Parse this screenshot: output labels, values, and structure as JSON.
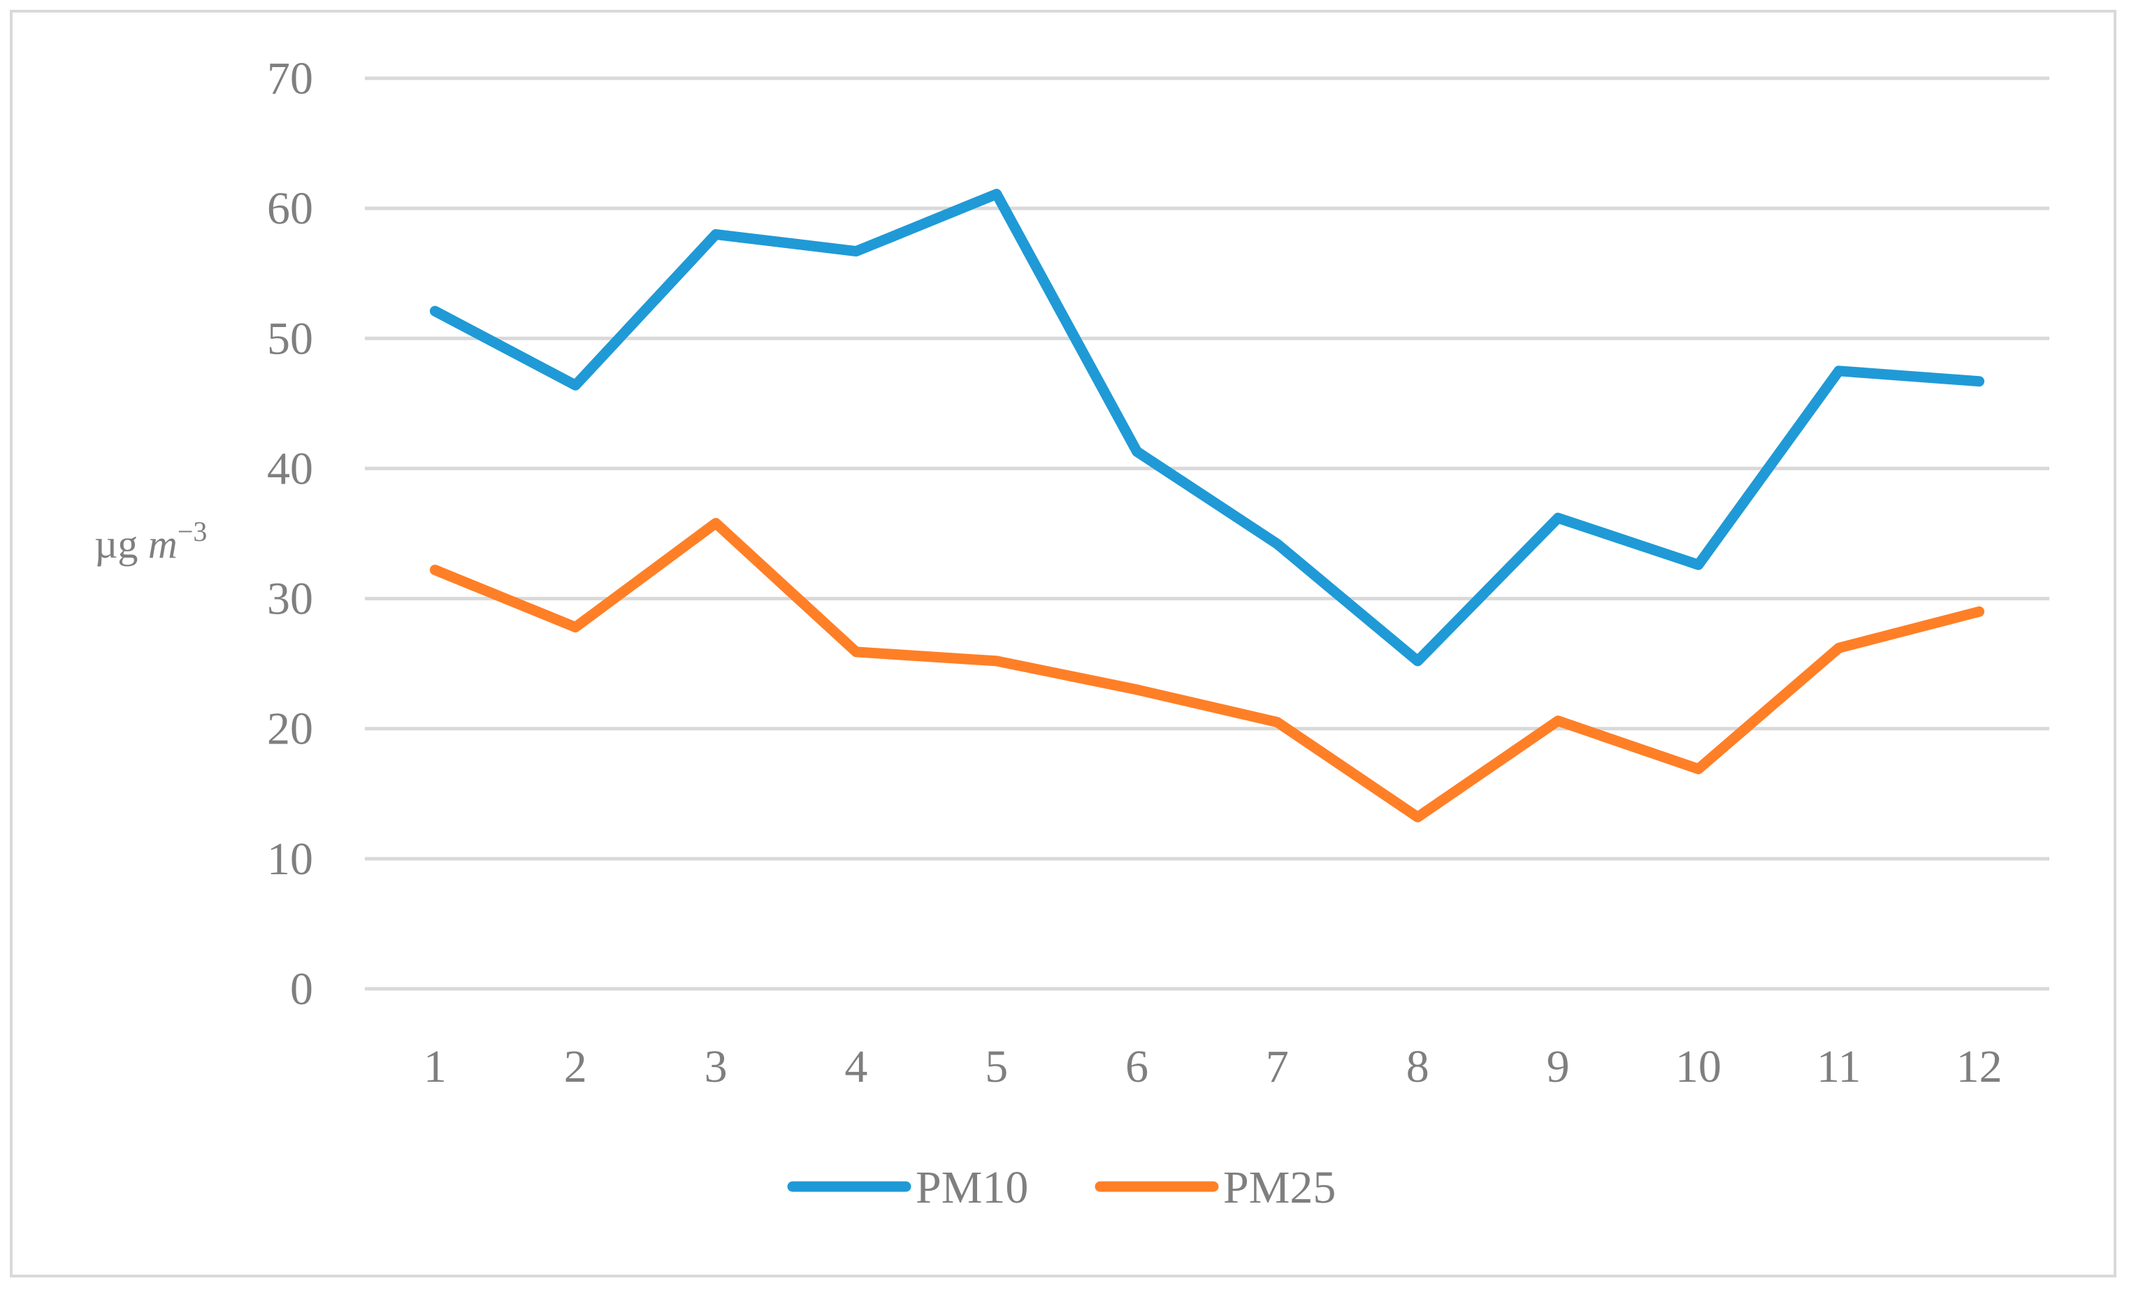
{
  "chart_data": {
    "type": "line",
    "categories": [
      "1",
      "2",
      "3",
      "4",
      "5",
      "6",
      "7",
      "8",
      "9",
      "10",
      "11",
      "12"
    ],
    "series": [
      {
        "name": "PM10",
        "color": "#1f9ad6",
        "values": [
          52.1,
          46.4,
          58.0,
          56.7,
          61.1,
          41.3,
          34.2,
          25.2,
          36.2,
          32.6,
          47.5,
          46.7
        ]
      },
      {
        "name": "PM25",
        "color": "#ff7f27",
        "values": [
          32.2,
          27.8,
          35.8,
          25.9,
          25.2,
          23.0,
          20.5,
          13.2,
          20.6,
          16.9,
          26.2,
          29.0
        ]
      }
    ],
    "ylabel": "µg m⁻³",
    "ylabel_parts": {
      "unit": "µg ",
      "var": "m",
      "exp": "−3"
    },
    "ylim": [
      0,
      70
    ],
    "yticks": [
      "0",
      "10",
      "20",
      "30",
      "40",
      "50",
      "60",
      "70"
    ],
    "grid": true,
    "legend_position": "bottom"
  }
}
